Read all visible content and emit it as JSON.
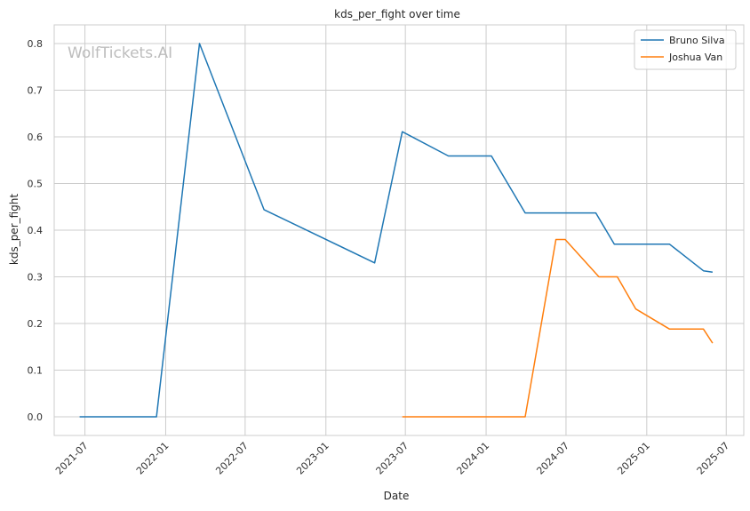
{
  "chart_data": {
    "type": "line",
    "title": "kds_per_fight over time",
    "xlabel": "Date",
    "ylabel": "kds_per_fight",
    "watermark": "WolfTickets.AI",
    "xlim": [
      "2021-04-22",
      "2025-08-10"
    ],
    "ylim": [
      -0.04,
      0.84
    ],
    "x_ticks": [
      "2021-07-01",
      "2022-01-01",
      "2022-07-01",
      "2023-01-01",
      "2023-07-01",
      "2024-01-01",
      "2024-07-01",
      "2025-01-01",
      "2025-07-01"
    ],
    "x_tick_labels": [
      "2021-07",
      "2022-01",
      "2022-07",
      "2023-01",
      "2023-07",
      "2024-01",
      "2024-07",
      "2025-01",
      "2025-07"
    ],
    "y_ticks": [
      0.0,
      0.1,
      0.2,
      0.3,
      0.4,
      0.5,
      0.6,
      0.7,
      0.8
    ],
    "y_tick_labels": [
      "0.0",
      "0.1",
      "0.2",
      "0.3",
      "0.4",
      "0.5",
      "0.6",
      "0.7",
      "0.8"
    ],
    "grid": true,
    "legend_position": "top-right",
    "series": [
      {
        "name": "Bruno Silva",
        "color": "#1f77b4",
        "points": [
          [
            "2021-06-19",
            0.0
          ],
          [
            "2021-12-11",
            0.0
          ],
          [
            "2022-03-19",
            0.8
          ],
          [
            "2022-08-13",
            0.444
          ],
          [
            "2023-04-22",
            0.33
          ],
          [
            "2023-06-24",
            0.611
          ],
          [
            "2023-10-07",
            0.559
          ],
          [
            "2024-01-13",
            0.559
          ],
          [
            "2024-03-30",
            0.437
          ],
          [
            "2024-09-07",
            0.437
          ],
          [
            "2024-10-19",
            0.37
          ],
          [
            "2025-02-22",
            0.37
          ],
          [
            "2025-05-10",
            0.313
          ],
          [
            "2025-05-31",
            0.31
          ]
        ]
      },
      {
        "name": "Joshua Van",
        "color": "#ff7f0e",
        "points": [
          [
            "2023-06-24",
            0.0
          ],
          [
            "2024-03-30",
            0.0
          ],
          [
            "2024-06-08",
            0.38
          ],
          [
            "2024-06-29",
            0.38
          ],
          [
            "2024-09-14",
            0.3
          ],
          [
            "2024-10-26",
            0.3
          ],
          [
            "2024-12-07",
            0.231
          ],
          [
            "2025-02-22",
            0.188
          ],
          [
            "2025-05-10",
            0.188
          ],
          [
            "2025-05-31",
            0.158
          ]
        ]
      }
    ]
  }
}
